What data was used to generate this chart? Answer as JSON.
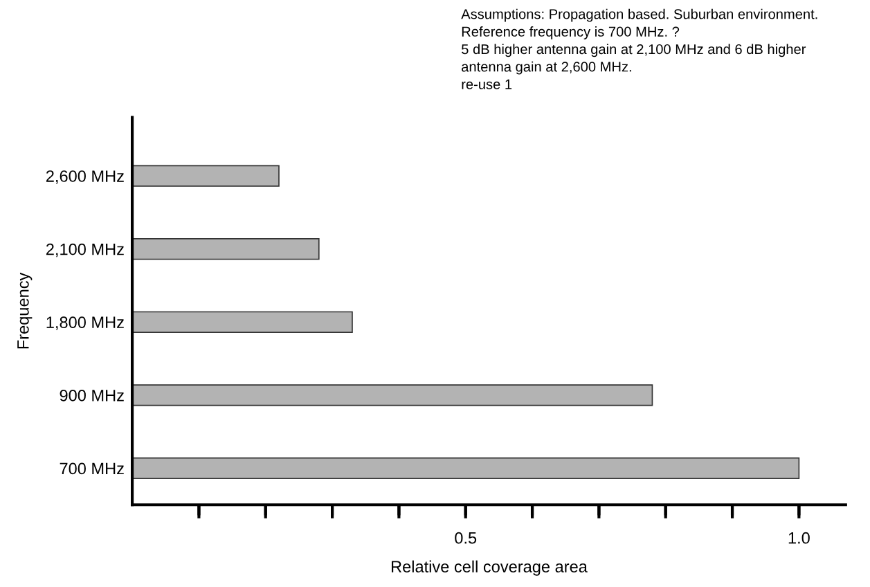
{
  "chart_data": {
    "type": "bar",
    "orientation": "horizontal",
    "xlabel": "Relative cell coverage area",
    "ylabel": "Frequency",
    "categories": [
      "2,600 MHz",
      "2,100 MHz",
      "1,800 MHz",
      "900 MHz",
      "700 MHz"
    ],
    "series": [
      {
        "color": "#b3b3b3",
        "values": [
          0.22,
          0.28,
          0.33,
          0.78,
          1.0
        ]
      }
    ],
    "xlim": [
      0,
      1.07
    ],
    "xticks": [
      {
        "value": 0.1,
        "label": null
      },
      {
        "value": 0.2,
        "label": null
      },
      {
        "value": 0.3,
        "label": null
      },
      {
        "value": 0.4,
        "label": null
      },
      0.5,
      {
        "value": 0.6,
        "label": null
      },
      {
        "value": 0.7,
        "label": null
      },
      {
        "value": 0.8,
        "label": null
      },
      {
        "value": 0.9,
        "label": null
      },
      {
        "value": 1.0,
        "label": "1.0"
      }
    ],
    "annotations": [
      "Assumptions: Propagation based. Suburban environment.\nReference frequency is 700 MHz. ?\n5 dB higher antenna gain at 2,100 MHz and 6 dB higher\nantenna gain at 2,600 MHz.\nre-use 1"
    ],
    "grid": false
  }
}
